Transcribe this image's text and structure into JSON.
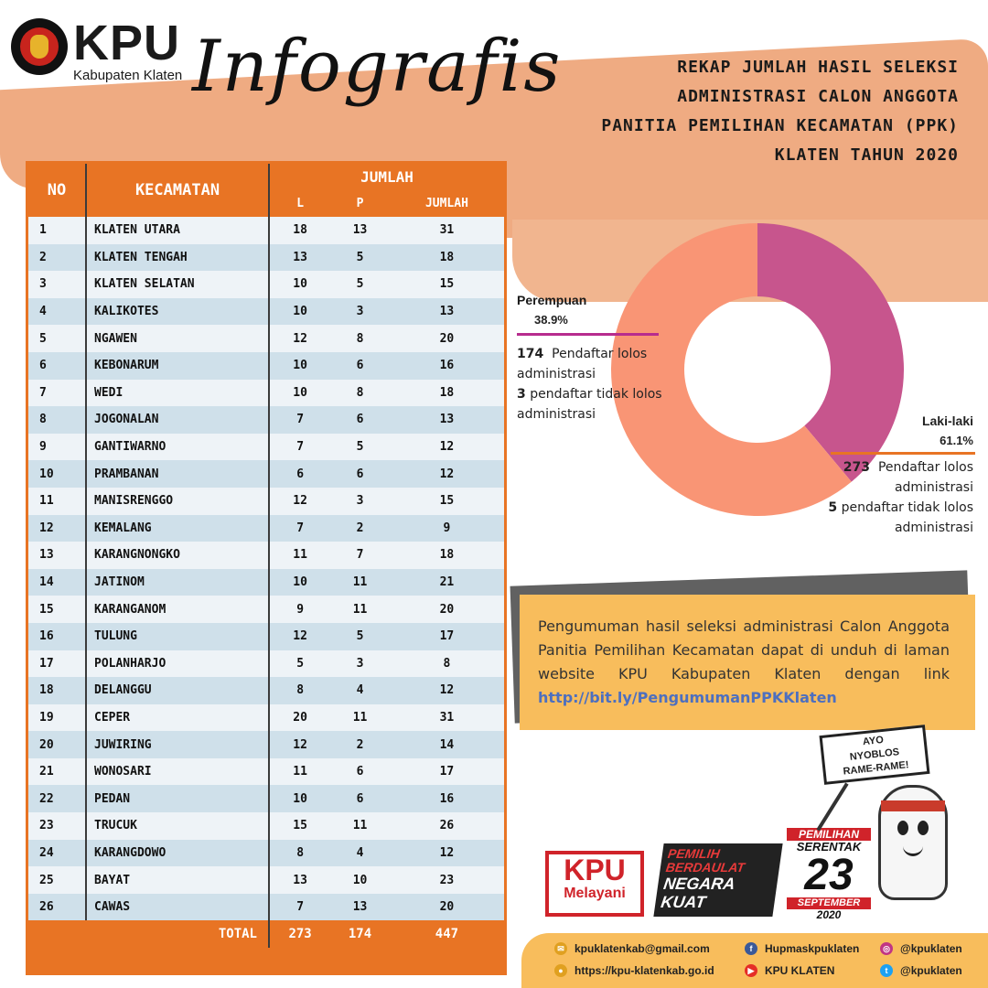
{
  "header": {
    "org_name": "KPU",
    "org_sub": "Kabupaten Klaten",
    "script_title": "Infografis",
    "title_lines": [
      "REKAP JUMLAH  HASIL  SELEKSI",
      "ADMINISTRASI CALON ANGGOTA",
      "PANITIA PEMILIHAN KECAMATAN (PPK)",
      "KLATEN TAHUN 2020"
    ]
  },
  "table": {
    "headers": {
      "no": "NO",
      "kecamatan": "KECAMATAN",
      "jumlah": "JUMLAH",
      "l": "L",
      "p": "P",
      "jumlah_sub": "JUMLAH"
    },
    "rows": [
      {
        "no": "1",
        "kec": "KLATEN UTARA",
        "l": "18",
        "p": "13",
        "j": "31"
      },
      {
        "no": "2",
        "kec": "KLATEN TENGAH",
        "l": "13",
        "p": "5",
        "j": "18"
      },
      {
        "no": "3",
        "kec": "KLATEN SELATAN",
        "l": "10",
        "p": "5",
        "j": "15"
      },
      {
        "no": "4",
        "kec": "KALIKOTES",
        "l": "10",
        "p": "3",
        "j": "13"
      },
      {
        "no": "5",
        "kec": "NGAWEN",
        "l": "12",
        "p": "8",
        "j": "20"
      },
      {
        "no": "6",
        "kec": "KEBONARUM",
        "l": "10",
        "p": "6",
        "j": "16"
      },
      {
        "no": "7",
        "kec": "WEDI",
        "l": "10",
        "p": "8",
        "j": "18"
      },
      {
        "no": "8",
        "kec": "JOGONALAN",
        "l": "7",
        "p": "6",
        "j": "13"
      },
      {
        "no": "9",
        "kec": "GANTIWARNO",
        "l": "7",
        "p": "5",
        "j": "12"
      },
      {
        "no": "10",
        "kec": "PRAMBANAN",
        "l": "6",
        "p": "6",
        "j": "12"
      },
      {
        "no": "11",
        "kec": "MANISRENGGO",
        "l": "12",
        "p": "3",
        "j": "15"
      },
      {
        "no": "12",
        "kec": "KEMALANG",
        "l": "7",
        "p": "2",
        "j": "9"
      },
      {
        "no": "13",
        "kec": "KARANGNONGKO",
        "l": "11",
        "p": "7",
        "j": "18"
      },
      {
        "no": "14",
        "kec": "JATINOM",
        "l": "10",
        "p": "11",
        "j": "21"
      },
      {
        "no": "15",
        "kec": "KARANGANOM",
        "l": "9",
        "p": "11",
        "j": "20"
      },
      {
        "no": "16",
        "kec": "TULUNG",
        "l": "12",
        "p": "5",
        "j": "17"
      },
      {
        "no": "17",
        "kec": "POLANHARJO",
        "l": "5",
        "p": "3",
        "j": "8"
      },
      {
        "no": "18",
        "kec": "DELANGGU",
        "l": "8",
        "p": "4",
        "j": "12"
      },
      {
        "no": "19",
        "kec": "CEPER",
        "l": "20",
        "p": "11",
        "j": "31"
      },
      {
        "no": "20",
        "kec": "JUWIRING",
        "l": "12",
        "p": "2",
        "j": "14"
      },
      {
        "no": "21",
        "kec": "WONOSARI",
        "l": "11",
        "p": "6",
        "j": "17"
      },
      {
        "no": "22",
        "kec": "PEDAN",
        "l": "10",
        "p": "6",
        "j": "16"
      },
      {
        "no": "23",
        "kec": "TRUCUK",
        "l": "15",
        "p": "11",
        "j": "26"
      },
      {
        "no": "24",
        "kec": "KARANGDOWO",
        "l": "8",
        "p": "4",
        "j": "12"
      },
      {
        "no": "25",
        "kec": "BAYAT",
        "l": "13",
        "p": "10",
        "j": "23"
      },
      {
        "no": "26",
        "kec": "CAWAS",
        "l": "7",
        "p": "13",
        "j": "20"
      }
    ],
    "total": {
      "label": "TOTAL",
      "l": "273",
      "p": "174",
      "j": "447"
    }
  },
  "chart_data": {
    "type": "pie",
    "donut": true,
    "slices": [
      {
        "label": "Perempuan",
        "pct": 38.9,
        "color": "#c7558d"
      },
      {
        "label": "Laki-laki",
        "pct": 61.1,
        "color": "#f99575"
      }
    ]
  },
  "legend": {
    "female": {
      "label": "Perempuan",
      "pct": "38.9%",
      "passed_num": "174",
      "passed_text": "Pendaftar lolos administrasi",
      "failed_num": "3",
      "failed_text": "pendaftar tidak lolos administrasi"
    },
    "male": {
      "label": "Laki-laki",
      "pct": "61.1%",
      "passed_num": "273",
      "passed_text": "Pendaftar lolos administrasi",
      "failed_num": "5",
      "failed_text": "pendaftar tidak lolos administrasi"
    }
  },
  "announcement": {
    "text": "Pengumuman hasil seleksi administrasi Calon Anggota Panitia Pemilihan Kecamatan dapat di unduh di laman website KPU Kabupaten Klaten dengan link ",
    "link": "http://bit.ly/PengumumanPPKKlaten"
  },
  "logos": {
    "kpu_melayani_1": "KPU",
    "kpu_melayani_2": "Melayani",
    "pemilih_1": "PEMILIH",
    "pemilih_2": "BERDAULAT",
    "pemilih_3": "NEGARA",
    "pemilih_4": "KUAT",
    "serentak_1": "PEMILIHAN",
    "serentak_2": "SERENTAK",
    "serentak_3": "23",
    "serentak_4": "SEPTEMBER",
    "serentak_5": "2020"
  },
  "mascot": {
    "sign_lines": [
      "AYO",
      "NYOBLOS",
      "RAME-RAME!"
    ]
  },
  "footer": {
    "email": "kpuklatenkab@gmail.com",
    "facebook": "Hupmaskpuklaten",
    "instagram": "@kpuklaten",
    "website": "https://kpu-klatenkab.go.id",
    "youtube": "KPU KLATEN",
    "twitter": "@kpuklaten"
  },
  "colors": {
    "accent_orange": "#e87424",
    "female": "#c7558d",
    "male": "#f99575",
    "announcement_bg": "#f8bd5c"
  }
}
